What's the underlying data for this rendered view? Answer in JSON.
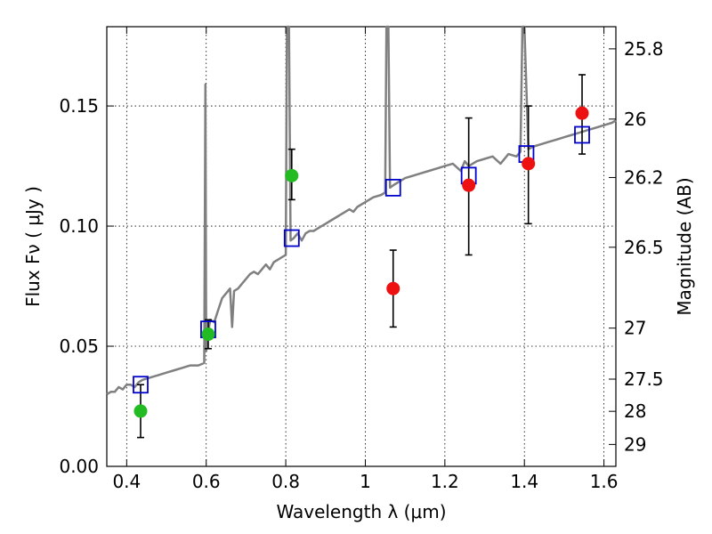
{
  "chart_data": {
    "type": "scatter",
    "xlabel": "Wavelength  λ (μm)",
    "ylabel": "Flux  Fν  ( μJy )",
    "y2label": "Magnitude (AB)",
    "xlim": [
      0.35,
      1.63
    ],
    "ylim": [
      0.0,
      0.183
    ],
    "grid": true,
    "x_ticks": [
      0.4,
      0.6,
      0.8,
      1.0,
      1.2,
      1.4,
      1.6
    ],
    "x_tick_labels": [
      "0.4",
      "0.6",
      "0.8",
      "1",
      "1.2",
      "1.4",
      "1.6"
    ],
    "y_ticks": [
      0.0,
      0.05,
      0.1,
      0.15
    ],
    "y_tick_labels": [
      "0.00",
      "0.05",
      "0.10",
      "0.15"
    ],
    "mag_ticks": [
      25.8,
      26,
      26.2,
      26.5,
      27,
      27.5,
      28,
      29
    ],
    "mag_tick_labels": [
      "25.8",
      "26",
      "26.2",
      "26.5",
      "27",
      "27.5",
      "28",
      "29"
    ],
    "colors": {
      "spectrum": "#808080",
      "model": "#0000cc",
      "green": "#22bb22",
      "red": "#ee1111",
      "error": "#000000"
    },
    "spectrum": [
      [
        0.35,
        0.03
      ],
      [
        0.36,
        0.031
      ],
      [
        0.37,
        0.031
      ],
      [
        0.38,
        0.033
      ],
      [
        0.39,
        0.032
      ],
      [
        0.4,
        0.034
      ],
      [
        0.41,
        0.034
      ],
      [
        0.42,
        0.033
      ],
      [
        0.43,
        0.035
      ],
      [
        0.44,
        0.036
      ],
      [
        0.46,
        0.037
      ],
      [
        0.48,
        0.038
      ],
      [
        0.5,
        0.039
      ],
      [
        0.52,
        0.04
      ],
      [
        0.54,
        0.041
      ],
      [
        0.56,
        0.042
      ],
      [
        0.58,
        0.042
      ],
      [
        0.595,
        0.043
      ],
      [
        0.598,
        0.159
      ],
      [
        0.6,
        0.048
      ],
      [
        0.605,
        0.056
      ],
      [
        0.61,
        0.061
      ],
      [
        0.62,
        0.06
      ],
      [
        0.63,
        0.065
      ],
      [
        0.64,
        0.07
      ],
      [
        0.65,
        0.072
      ],
      [
        0.66,
        0.074
      ],
      [
        0.665,
        0.058
      ],
      [
        0.67,
        0.073
      ],
      [
        0.68,
        0.074
      ],
      [
        0.69,
        0.076
      ],
      [
        0.7,
        0.078
      ],
      [
        0.71,
        0.08
      ],
      [
        0.72,
        0.081
      ],
      [
        0.73,
        0.08
      ],
      [
        0.74,
        0.082
      ],
      [
        0.75,
        0.084
      ],
      [
        0.76,
        0.082
      ],
      [
        0.77,
        0.085
      ],
      [
        0.78,
        0.086
      ],
      [
        0.79,
        0.087
      ],
      [
        0.8,
        0.088
      ],
      [
        0.803,
        0.183
      ],
      [
        0.808,
        0.183
      ],
      [
        0.812,
        0.094
      ],
      [
        0.82,
        0.095
      ],
      [
        0.83,
        0.097
      ],
      [
        0.84,
        0.094
      ],
      [
        0.85,
        0.097
      ],
      [
        0.86,
        0.098
      ],
      [
        0.87,
        0.098
      ],
      [
        0.88,
        0.099
      ],
      [
        0.89,
        0.1
      ],
      [
        0.9,
        0.101
      ],
      [
        0.92,
        0.103
      ],
      [
        0.94,
        0.105
      ],
      [
        0.96,
        0.107
      ],
      [
        0.97,
        0.106
      ],
      [
        0.98,
        0.108
      ],
      [
        1.0,
        0.11
      ],
      [
        1.02,
        0.112
      ],
      [
        1.04,
        0.113
      ],
      [
        1.05,
        0.114
      ],
      [
        1.053,
        0.183
      ],
      [
        1.058,
        0.183
      ],
      [
        1.062,
        0.116
      ],
      [
        1.07,
        0.117
      ],
      [
        1.08,
        0.118
      ],
      [
        1.09,
        0.119
      ],
      [
        1.1,
        0.12
      ],
      [
        1.12,
        0.121
      ],
      [
        1.14,
        0.122
      ],
      [
        1.16,
        0.123
      ],
      [
        1.18,
        0.124
      ],
      [
        1.2,
        0.125
      ],
      [
        1.22,
        0.126
      ],
      [
        1.24,
        0.123
      ],
      [
        1.25,
        0.127
      ],
      [
        1.26,
        0.125
      ],
      [
        1.28,
        0.127
      ],
      [
        1.3,
        0.128
      ],
      [
        1.32,
        0.129
      ],
      [
        1.34,
        0.126
      ],
      [
        1.36,
        0.13
      ],
      [
        1.38,
        0.129
      ],
      [
        1.39,
        0.131
      ],
      [
        1.395,
        0.183
      ],
      [
        1.4,
        0.183
      ],
      [
        1.41,
        0.132
      ],
      [
        1.42,
        0.133
      ],
      [
        1.44,
        0.134
      ],
      [
        1.46,
        0.135
      ],
      [
        1.48,
        0.136
      ],
      [
        1.5,
        0.137
      ],
      [
        1.52,
        0.138
      ],
      [
        1.54,
        0.139
      ],
      [
        1.56,
        0.14
      ],
      [
        1.58,
        0.141
      ],
      [
        1.6,
        0.142
      ],
      [
        1.62,
        0.143
      ],
      [
        1.63,
        0.144
      ]
    ],
    "model_points": [
      {
        "x": 0.435,
        "y": 0.034
      },
      {
        "x": 0.605,
        "y": 0.057
      },
      {
        "x": 0.815,
        "y": 0.095
      },
      {
        "x": 1.07,
        "y": 0.116
      },
      {
        "x": 1.26,
        "y": 0.121
      },
      {
        "x": 1.405,
        "y": 0.13
      },
      {
        "x": 1.545,
        "y": 0.138
      }
    ],
    "observed_points": [
      {
        "x": 0.435,
        "y": 0.023,
        "yerr_low": 0.012,
        "yerr_high": 0.034,
        "color": "green"
      },
      {
        "x": 0.605,
        "y": 0.055,
        "yerr_low": 0.049,
        "yerr_high": 0.061,
        "color": "green"
      },
      {
        "x": 0.815,
        "y": 0.121,
        "yerr_low": 0.111,
        "yerr_high": 0.132,
        "color": "green"
      },
      {
        "x": 1.07,
        "y": 0.074,
        "yerr_low": 0.058,
        "yerr_high": 0.09,
        "color": "red"
      },
      {
        "x": 1.26,
        "y": 0.117,
        "yerr_low": 0.088,
        "yerr_high": 0.145,
        "color": "red"
      },
      {
        "x": 1.41,
        "y": 0.126,
        "yerr_low": 0.101,
        "yerr_high": 0.15,
        "color": "red"
      },
      {
        "x": 1.545,
        "y": 0.147,
        "yerr_low": 0.13,
        "yerr_high": 0.163,
        "color": "red"
      }
    ]
  }
}
